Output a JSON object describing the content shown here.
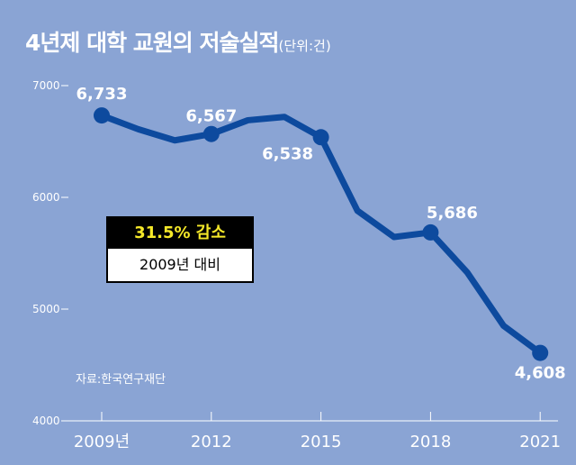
{
  "chart_data": {
    "type": "line",
    "title": "4년제 대학 교원의 저술실적",
    "unit": "(단위:건)",
    "x": [
      2009,
      2010,
      2011,
      2012,
      2013,
      2014,
      2015,
      2016,
      2017,
      2018,
      2019,
      2020,
      2021
    ],
    "values": [
      6733,
      6610,
      6510,
      6567,
      6690,
      6720,
      6538,
      5880,
      5645,
      5686,
      5330,
      4850,
      4608
    ],
    "data_labels": [
      {
        "x": 2009,
        "label": "6,733"
      },
      {
        "x": 2012,
        "label": "6,567"
      },
      {
        "x": 2015,
        "label": "6,538"
      },
      {
        "x": 2018,
        "label": "5,686"
      },
      {
        "x": 2021,
        "label": "4,608"
      }
    ],
    "ylim": [
      4000,
      7000
    ],
    "yticks": [
      {
        "v": 7000,
        "label": "7000"
      },
      {
        "v": 6000,
        "label": "6000"
      },
      {
        "v": 5000,
        "label": "5000"
      },
      {
        "v": 4000,
        "label": "4000"
      }
    ],
    "xticks": [
      {
        "v": 2009,
        "label": "2009년"
      },
      {
        "v": 2012,
        "label": "2012"
      },
      {
        "v": 2015,
        "label": "2015"
      },
      {
        "v": 2018,
        "label": "2018"
      },
      {
        "v": 2021,
        "label": "2021"
      }
    ],
    "annotation": {
      "headline": "31.5% 감소",
      "sub": "2009년 대비"
    },
    "source": "자료:한국연구재단",
    "grid": false,
    "colors": {
      "background": "#8aa4d4",
      "line": "#0d4a9e",
      "headline": "#f5e829"
    }
  }
}
